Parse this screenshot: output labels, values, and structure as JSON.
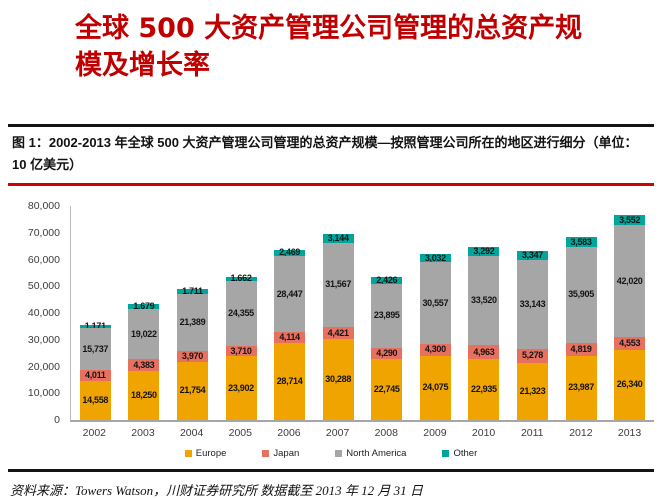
{
  "header": {
    "title_line1": "全球 500 大资产管理公司管理的总资产规",
    "title_line2": "模及增长率",
    "title_color": "#c00000"
  },
  "figure": {
    "caption": "图 1：2002-2013 年全球 500 大资产管理公司管理的总资产规模—按照管理公司所在的地区进行细分（单位：10 亿美元）"
  },
  "chart_data": {
    "type": "bar",
    "stacked": true,
    "title": "",
    "xlabel": "",
    "ylabel": "",
    "unit": "10亿美元",
    "categories": [
      "2002",
      "2003",
      "2004",
      "2005",
      "2006",
      "2007",
      "2008",
      "2009",
      "2010",
      "2011",
      "2012",
      "2013"
    ],
    "series": [
      {
        "name": "Europe",
        "color": "#f0a400",
        "values": [
          14558,
          18250,
          21754,
          23902,
          28714,
          30288,
          22745,
          24075,
          22935,
          21323,
          23987,
          26340
        ]
      },
      {
        "name": "Japan",
        "color": "#e8705f",
        "values": [
          4011,
          4383,
          3970,
          3710,
          4114,
          4421,
          4290,
          4300,
          4963,
          5278,
          4819,
          4553
        ]
      },
      {
        "name": "North America",
        "color": "#a6a6a6",
        "values": [
          15737,
          19022,
          21389,
          24355,
          28447,
          31567,
          23895,
          30557,
          33520,
          33143,
          35905,
          42020
        ]
      },
      {
        "name": "Other",
        "color": "#00a69c",
        "values": [
          1171,
          1679,
          1711,
          1662,
          2469,
          3144,
          2426,
          3032,
          3292,
          3347,
          3583,
          3552
        ]
      }
    ],
    "ylim": [
      0,
      80000
    ],
    "ytick_labels": [
      "0",
      "10,000",
      "20,000",
      "30,000",
      "40,000",
      "50,000",
      "60,000",
      "70,000",
      "80,000"
    ],
    "grid": false,
    "data_labels": true,
    "legend_position": "bottom"
  },
  "footer": {
    "source": "资料来源：Towers Watson，川财证券研究所  数据截至 2013 年 12 月 31 日"
  }
}
